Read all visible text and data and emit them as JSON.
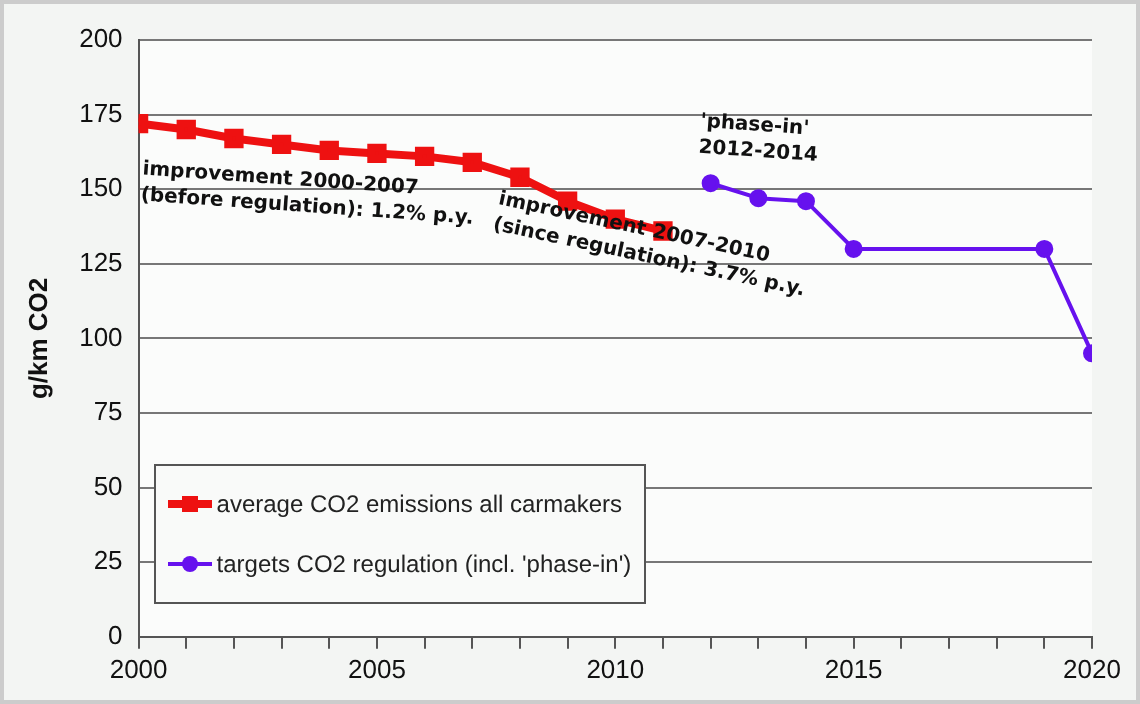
{
  "chart_data": {
    "type": "line",
    "ylabel": "g/km CO2",
    "xlim": [
      2000,
      2020
    ],
    "xticks": [
      2000,
      {
        "value": 2001,
        "label": null
      },
      {
        "value": 2002,
        "label": null
      },
      {
        "value": 2003,
        "label": null
      },
      {
        "value": 2004,
        "label": null
      },
      2005,
      {
        "value": 2006,
        "label": null
      },
      {
        "value": 2007,
        "label": null
      },
      {
        "value": 2008,
        "label": null
      },
      {
        "value": 2009,
        "label": null
      },
      2010,
      {
        "value": 2011,
        "label": null
      },
      {
        "value": 2012,
        "label": null
      },
      {
        "value": 2013,
        "label": null
      },
      {
        "value": 2014,
        "label": null
      },
      2015,
      {
        "value": 2016,
        "label": null
      },
      {
        "value": 2017,
        "label": null
      },
      {
        "value": 2018,
        "label": null
      },
      {
        "value": 2019,
        "label": null
      },
      2020
    ],
    "ylim": [
      0,
      200
    ],
    "yticks": [
      0,
      25,
      50,
      75,
      100,
      125,
      150,
      175,
      200
    ],
    "grid": "y",
    "legend": "bottom left",
    "series": [
      {
        "name": "average CO2 emissions all carmakers",
        "color": "#ee1111",
        "marker": "square",
        "x": [
          2000,
          2001,
          2002,
          2003,
          2004,
          2005,
          2006,
          2007,
          2008,
          2009,
          2010,
          2011
        ],
        "values": [
          172,
          170,
          167,
          165,
          163,
          162,
          161,
          159,
          154,
          146,
          140,
          136
        ]
      },
      {
        "name": "targets CO2 regulation (incl. 'phase-in')",
        "color": "#6611ee",
        "marker": "circle",
        "x": [
          2012,
          2013,
          2014,
          2015,
          2019,
          2020
        ],
        "values": [
          152,
          147,
          146,
          130,
          130,
          95
        ]
      }
    ],
    "annotations": [
      "improvement 2000-2007\n(before regulation): 1.2% p.y.",
      "improvement 2007-2010\n(since regulation): 3.7% p.y.",
      "'phase-in'\n2012-2014"
    ]
  }
}
